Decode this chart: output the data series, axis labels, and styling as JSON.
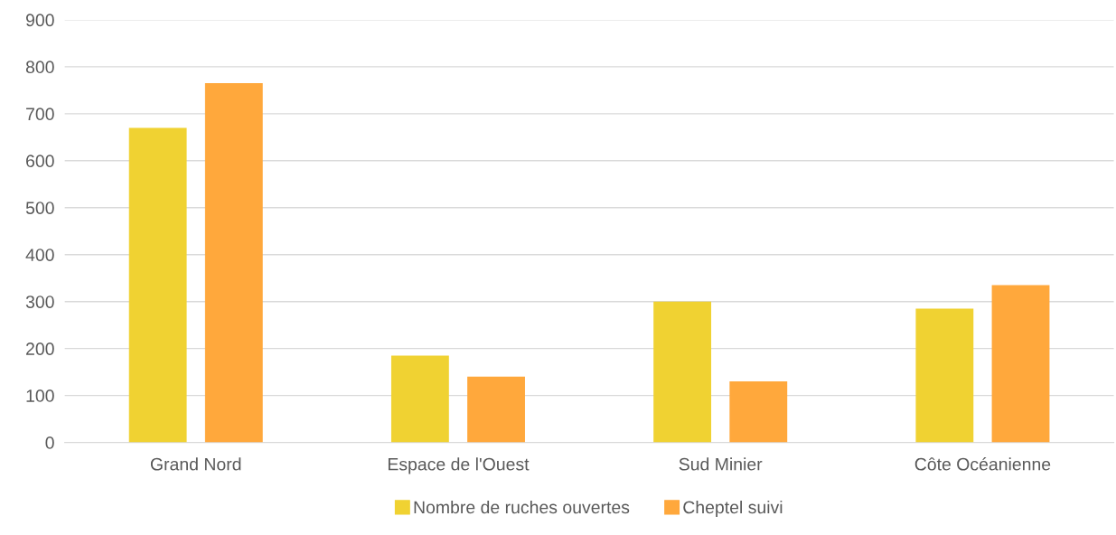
{
  "chart_data": {
    "type": "bar",
    "categories": [
      "Grand Nord",
      "Espace de l'Ouest",
      "Sud Minier",
      "Côte Océanienne"
    ],
    "series": [
      {
        "name": "Nombre de ruches ouvertes",
        "color": "#f0d232",
        "values": [
          670,
          185,
          300,
          285
        ]
      },
      {
        "name": "Cheptel suivi",
        "color": "#ffa83c",
        "values": [
          765,
          140,
          130,
          335
        ]
      }
    ],
    "ylim": [
      0,
      900
    ],
    "yticks": [
      0,
      100,
      200,
      300,
      400,
      500,
      600,
      700,
      800,
      900
    ],
    "grid": "y",
    "legend": "bottom"
  }
}
